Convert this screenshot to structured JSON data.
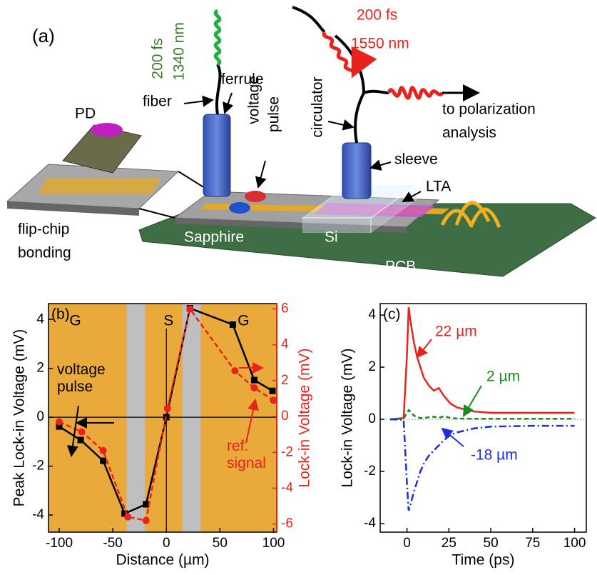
{
  "diagram": {
    "labels": [
      "(a)",
      "200 fs",
      "1340 nm",
      "fiber",
      "ferrule",
      "PD",
      "voltage",
      "pulse",
      "circulator",
      "200 fs",
      "1550 nm",
      "to polarization",
      "analysis",
      "sleeve",
      "LTA",
      "flip-chip",
      "bonding",
      "Sapphire",
      "Si",
      "PCB"
    ]
  },
  "chart_data": [
    {
      "type": "line",
      "panel_label": "(b)",
      "x_label": "Distance (µm)",
      "y_label": "Peak Lock-in Voltage (mV)",
      "y2_label": "Lock-in Voltage (mV)",
      "region_labels": [
        "G",
        "S",
        "G"
      ],
      "xlim": [
        -110,
        103
      ],
      "xticks": [
        -100,
        -50,
        0,
        50,
        100
      ],
      "ylim": [
        -4.7,
        4.65
      ],
      "yticks": [
        -4,
        -2,
        0,
        2,
        4
      ],
      "y2lim": [
        -6.45,
        6.3
      ],
      "y2ticks": [
        -6,
        -4,
        -2,
        0,
        2,
        4,
        6
      ],
      "y2color": "#e8231c",
      "series": [
        {
          "name": "voltage pulse",
          "color": "#000000",
          "marker": "square",
          "dash": false,
          "x": [
            -100,
            -80,
            -59,
            -39,
            -19,
            0,
            22,
            62,
            82,
            99
          ],
          "values": [
            -0.38,
            -0.93,
            -1.78,
            -3.94,
            -3.56,
            0,
            4.46,
            3.79,
            1.52,
            1.08
          ]
        },
        {
          "name": "ref. signal",
          "color": "#e8231c",
          "marker": "circle",
          "dash": true,
          "axis": "y2",
          "x": [
            -100,
            -79,
            -59,
            -36,
            -19,
            1,
            22,
            64,
            82,
            100
          ],
          "values": [
            -0.3,
            -0.85,
            -1.9,
            -5.6,
            -5.8,
            0.45,
            6.0,
            2.55,
            1.6,
            0.9
          ]
        }
      ]
    },
    {
      "type": "line",
      "panel_label": "(c)",
      "x_label": "Time (ps)",
      "y_label": "Lock-in Voltage (mV)",
      "xlim": [
        -16,
        107
      ],
      "xticks": [
        0,
        25,
        50,
        75,
        100
      ],
      "ylim": [
        -4.33,
        4.44
      ],
      "yticks": [
        -4,
        -2,
        0,
        2,
        4
      ],
      "x": [
        -10,
        -2,
        0,
        1,
        2,
        4,
        6,
        8,
        10,
        13,
        16,
        19,
        22,
        26,
        30,
        40,
        50,
        75,
        100
      ],
      "series": [
        {
          "name": "22 µm",
          "color": "#e8231c",
          "dash": "solid",
          "values": [
            0,
            0.05,
            2.5,
            4.3,
            3.8,
            3.0,
            2.4,
            2.0,
            1.6,
            1.3,
            1.1,
            1.2,
            0.9,
            0.6,
            0.45,
            0.3,
            0.25,
            0.25,
            0.25
          ]
        },
        {
          "name": "2 µm",
          "color": "#1a8a1a",
          "dash": "dash",
          "values": [
            0,
            0.02,
            0.25,
            0.35,
            0.3,
            0.15,
            0.08,
            0.05,
            0.05,
            0.08,
            0.1,
            0.05,
            0.12,
            0.05,
            0.03,
            0.02,
            0.02,
            0.02,
            0.02
          ]
        },
        {
          "name": "-18 µm",
          "color": "#1a2ee0",
          "dash": "dashdot",
          "values": [
            0,
            -0.02,
            -2.5,
            -3.5,
            -3.3,
            -2.8,
            -2.4,
            -2.0,
            -1.7,
            -1.4,
            -1.2,
            -1.0,
            -0.8,
            -0.6,
            -0.5,
            -0.35,
            -0.28,
            -0.25,
            -0.25
          ]
        }
      ]
    }
  ]
}
